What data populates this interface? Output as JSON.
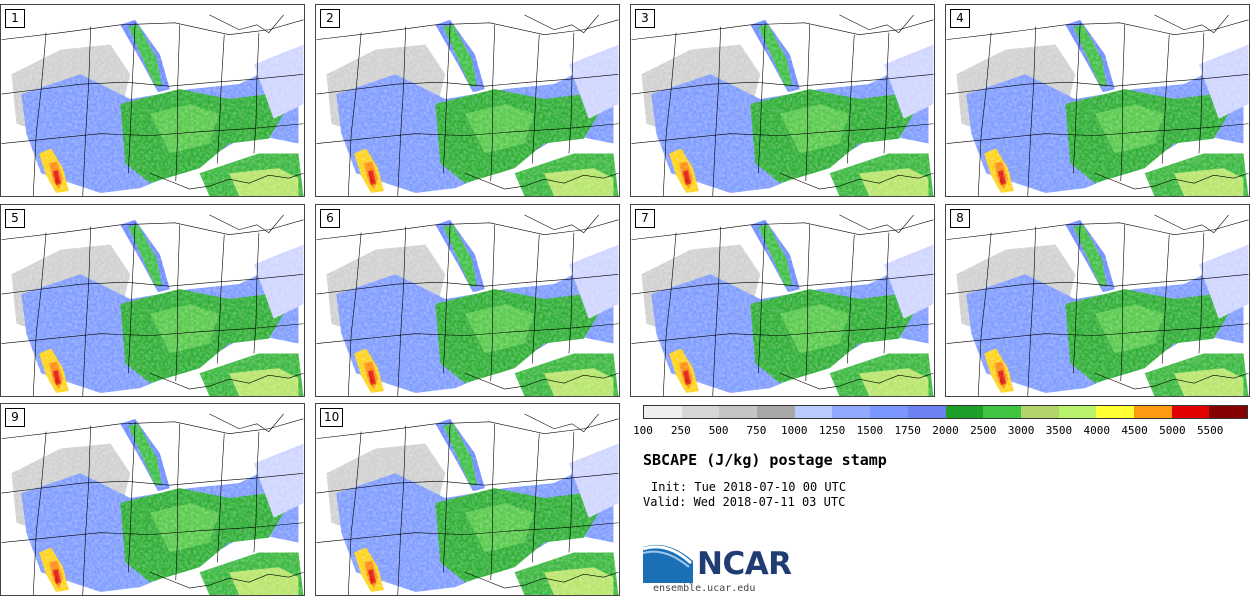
{
  "panels": [
    {
      "label": "1"
    },
    {
      "label": "2"
    },
    {
      "label": "3"
    },
    {
      "label": "4"
    },
    {
      "label": "5"
    },
    {
      "label": "6"
    },
    {
      "label": "7"
    },
    {
      "label": "8"
    },
    {
      "label": "9"
    },
    {
      "label": "10"
    }
  ],
  "colorbar": {
    "colors": [
      "#eeeeee",
      "#d6d6d6",
      "#c4c4c4",
      "#a8a8a8",
      "#b8caff",
      "#90aaff",
      "#7a96ff",
      "#6c82f2",
      "#1e9f2a",
      "#3ec441",
      "#b2d46c",
      "#b8f26a",
      "#ffff33",
      "#ff9b12",
      "#e30000",
      "#850000"
    ],
    "ticks": [
      "100",
      "250",
      "500",
      "750",
      "1000",
      "1250",
      "1500",
      "1750",
      "2000",
      "2500",
      "3000",
      "3500",
      "4000",
      "4500",
      "5000",
      "5500"
    ]
  },
  "title": "SBCAPE (J/kg) postage stamp",
  "init_text": "Init: Tue 2018-07-10 00 UTC",
  "valid_text": "Valid: Wed 2018-07-11 03 UTC",
  "logo": {
    "name": "NCAR",
    "url": "ensemble.ucar.edu",
    "accent": "#1a6fb5"
  }
}
